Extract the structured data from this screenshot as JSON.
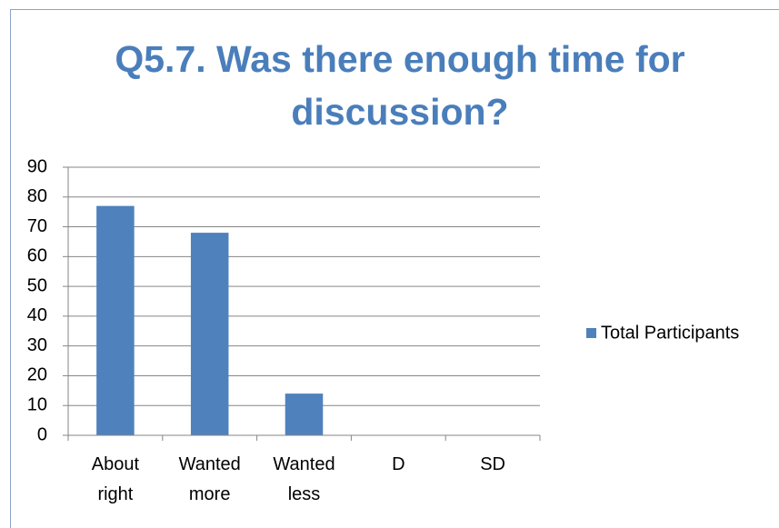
{
  "chart_data": {
    "type": "bar",
    "title": "Q5.7. Was there enough time for discussion?",
    "categories": [
      "About right",
      "Wanted more",
      "Wanted less",
      "D",
      "SD"
    ],
    "series": [
      {
        "name": "Total Participants",
        "color": "#4f81bd",
        "values": [
          77,
          68,
          14,
          0,
          0
        ]
      }
    ],
    "ylim": [
      0,
      90
    ],
    "yticks": [
      0,
      10,
      20,
      30,
      40,
      50,
      60,
      70,
      80,
      90
    ],
    "grid": true,
    "legend": "right"
  }
}
